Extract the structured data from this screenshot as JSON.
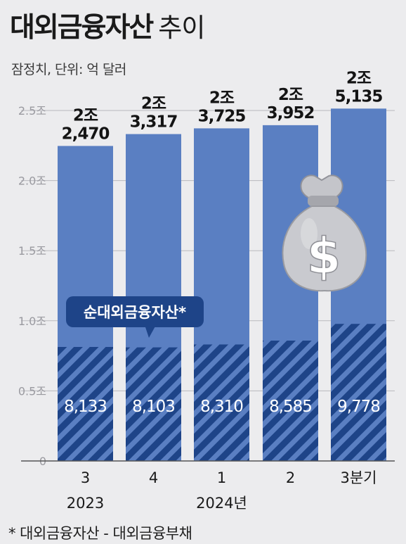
{
  "title": "대외금융자산",
  "title_suffix": "추이",
  "subtitle": "잠정치, 단위: 억 달러",
  "footnote": "* 대외금융자산 - 대외금융부채",
  "colors": {
    "background": "#ececee",
    "bar": "#5a7fc2",
    "net_bar": "#1e4488",
    "net_stripe": "#5a7fc2",
    "label_box": "#1e4488",
    "money_bag": "#c9cacf"
  },
  "icons": {
    "money_bag": "money-bag-icon"
  },
  "chart_data": {
    "type": "bar",
    "categories": [
      "3",
      "4",
      "1",
      "2",
      "3분기"
    ],
    "years": [
      "2023",
      "2024년"
    ],
    "yticks": [
      "0",
      "0.5조",
      "1.0조",
      "1.5조",
      "2.0조",
      "2.5조"
    ],
    "ylim": [
      0,
      25000
    ],
    "series": [
      {
        "name": "대외금융자산",
        "values": [
          22470,
          23317,
          23725,
          23952,
          25135
        ],
        "labels_top": [
          "2조",
          "2조",
          "2조",
          "2조",
          "2조"
        ],
        "labels_bottom": [
          "2,470",
          "3,317",
          "3,725",
          "3,952",
          "5,135"
        ]
      },
      {
        "name": "순대외금융자산*",
        "values": [
          8133,
          8103,
          8310,
          8585,
          9778
        ],
        "labels": [
          "8,133",
          "8,103",
          "8,310",
          "8,585",
          "9,778"
        ]
      }
    ]
  }
}
